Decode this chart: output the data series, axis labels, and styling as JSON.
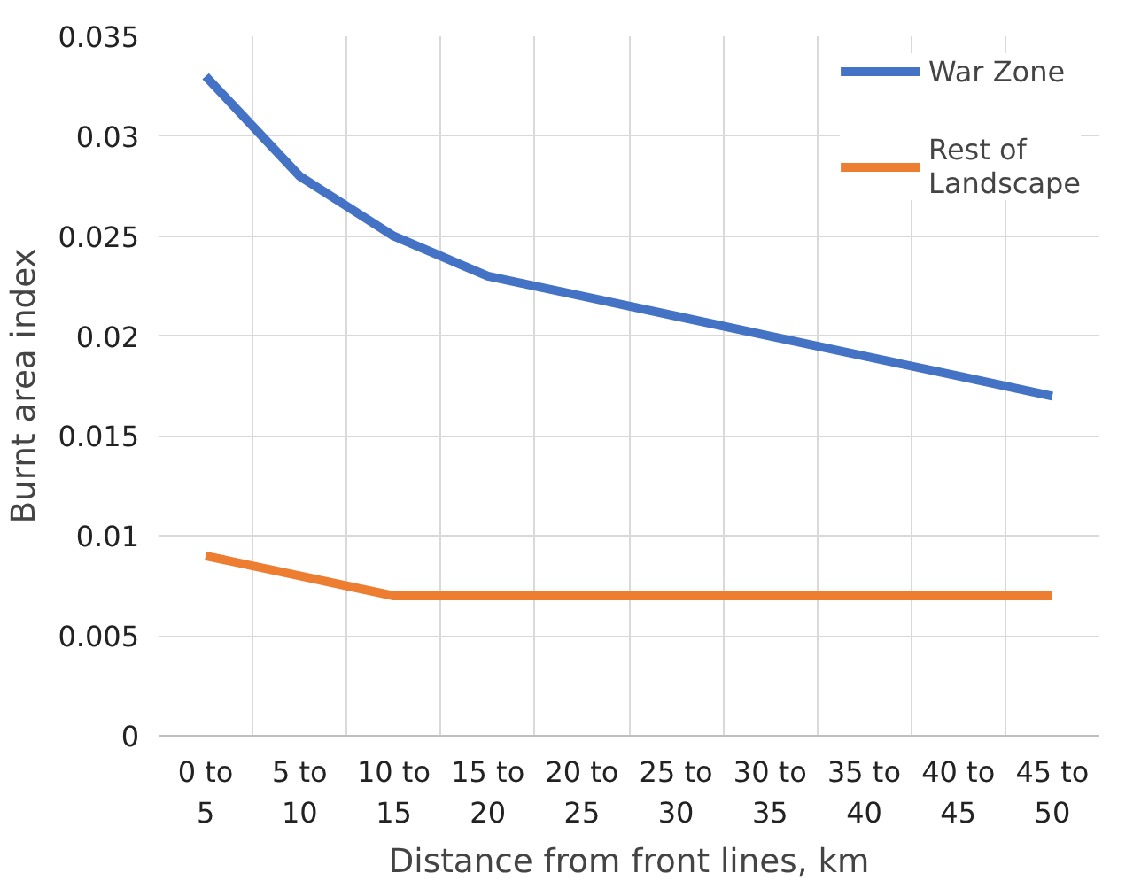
{
  "chart_data": {
    "type": "line",
    "xlabel": "Distance from front lines, km",
    "ylabel": "Burnt area index",
    "categories": [
      "0 to 5",
      "5 to 10",
      "10 to 15",
      "15 to 20",
      "20 to 25",
      "25 to 30",
      "30 to 35",
      "35 to 40",
      "40 to 45",
      "45 to 50"
    ],
    "series": [
      {
        "name": "War Zone",
        "color": "#4472c4",
        "values": [
          0.033,
          0.028,
          0.025,
          0.023,
          0.022,
          0.021,
          0.02,
          0.019,
          0.018,
          0.017
        ]
      },
      {
        "name": "Rest of Landscape",
        "color": "#ed7d31",
        "values": [
          0.009,
          0.008,
          0.007,
          0.007,
          0.007,
          0.007,
          0.007,
          0.007,
          0.007,
          0.007
        ]
      }
    ],
    "ylim": [
      0,
      0.035
    ],
    "yticks": [
      0,
      {
        "value": 0.005,
        "label": "0.005"
      },
      {
        "value": 0.01,
        "label": "0.01"
      },
      {
        "value": 0.015,
        "label": "0.015"
      },
      {
        "value": 0.02,
        "label": "0.02"
      },
      {
        "value": 0.025,
        "label": "0.025"
      },
      {
        "value": 0.03,
        "label": "0.03"
      },
      {
        "value": 0.035,
        "label": "0.035"
      }
    ],
    "grid": true,
    "legend": "top right",
    "marker": "none",
    "line_style": "solid"
  }
}
